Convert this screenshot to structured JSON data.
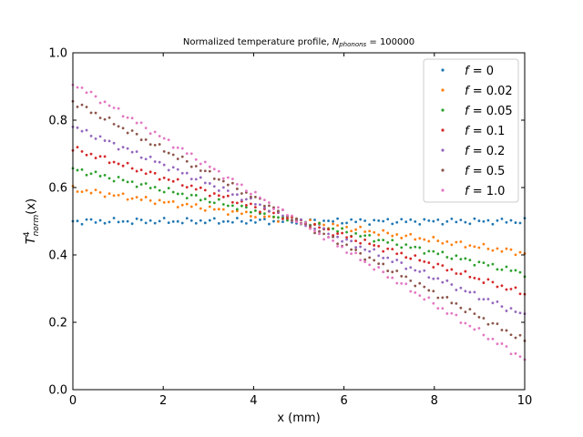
{
  "chart_data": {
    "type": "scatter",
    "title_parts": {
      "prefix": "Normalized temperature profile, ",
      "symbol": "N",
      "subscript": "phonons",
      "suffix": " = 100000"
    },
    "xlabel": "x (mm)",
    "ylabel_parts": {
      "symbol": "T",
      "superscript": "4",
      "subscript": "norm",
      "suffix": "(x)"
    },
    "xlim": [
      0,
      10
    ],
    "ylim": [
      0,
      1
    ],
    "xticks": [
      "0",
      "2",
      "4",
      "6",
      "8",
      "10"
    ],
    "yticks": [
      "0.0",
      "0.2",
      "0.4",
      "0.6",
      "0.8",
      "1.0"
    ],
    "grid": false,
    "legend_position": "top-right",
    "legend_prefix": "f",
    "points_per_series": 100,
    "series": [
      {
        "name": "0",
        "color": "#1f77b4",
        "start": 0.5,
        "end": 0.5
      },
      {
        "name": "0.02",
        "color": "#ff7f0e",
        "start": 0.595,
        "end": 0.405
      },
      {
        "name": "0.05",
        "color": "#2ca02c",
        "start": 0.655,
        "end": 0.345
      },
      {
        "name": "0.1",
        "color": "#d62728",
        "start": 0.715,
        "end": 0.285
      },
      {
        "name": "0.2",
        "color": "#9467bd",
        "start": 0.78,
        "end": 0.22
      },
      {
        "name": "0.5",
        "color": "#8c564b",
        "start": 0.855,
        "end": 0.145
      },
      {
        "name": "1.0",
        "color": "#e377c2",
        "start": 0.91,
        "end": 0.09
      }
    ]
  }
}
